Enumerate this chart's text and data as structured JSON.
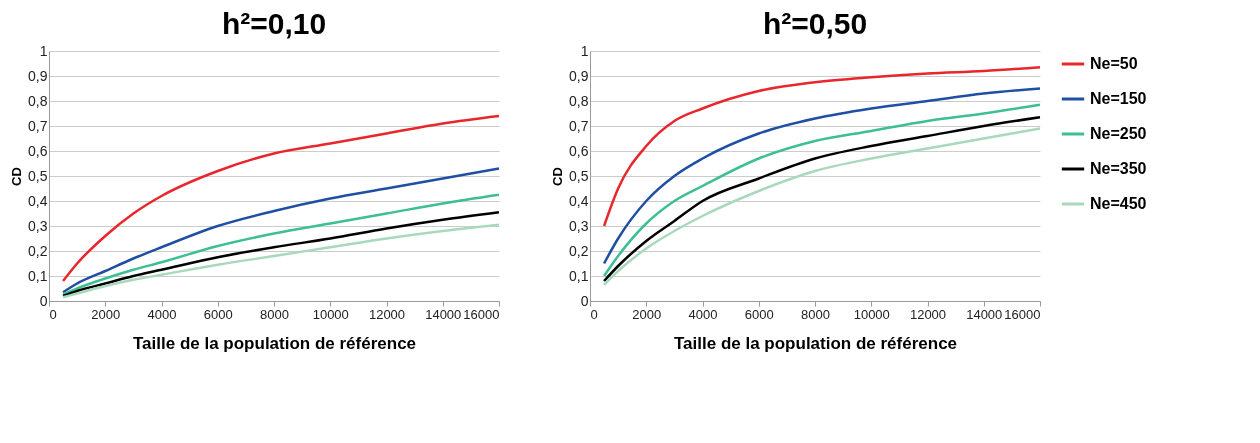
{
  "chart_data": [
    {
      "type": "line",
      "title": "h²=0,10",
      "xlabel": "Taille de la population de référence",
      "ylabel": "CD",
      "x": [
        500,
        1000,
        2000,
        3000,
        4000,
        6000,
        8000,
        10000,
        12000,
        14000,
        16000
      ],
      "series": [
        {
          "color": "#e8262b",
          "values": [
            0.08,
            0.15,
            0.26,
            0.35,
            0.42,
            0.52,
            0.59,
            0.63,
            0.67,
            0.71,
            0.74
          ]
        },
        {
          "color": "#1f4fa3",
          "values": [
            0.035,
            0.07,
            0.12,
            0.17,
            0.215,
            0.3,
            0.36,
            0.41,
            0.45,
            0.49,
            0.53
          ]
        },
        {
          "color": "#3dbf93",
          "values": [
            0.025,
            0.05,
            0.09,
            0.125,
            0.155,
            0.22,
            0.27,
            0.31,
            0.35,
            0.39,
            0.425
          ]
        },
        {
          "color": "#000000",
          "values": [
            0.02,
            0.04,
            0.07,
            0.1,
            0.125,
            0.175,
            0.215,
            0.25,
            0.29,
            0.325,
            0.355
          ]
        },
        {
          "color": "#a8d8bd",
          "values": [
            0.015,
            0.03,
            0.06,
            0.085,
            0.105,
            0.145,
            0.18,
            0.215,
            0.25,
            0.28,
            0.305
          ]
        }
      ],
      "xlim": [
        0,
        16000
      ],
      "xticks": [
        0,
        2000,
        4000,
        6000,
        8000,
        10000,
        12000,
        14000,
        16000
      ],
      "ylim": [
        0,
        1
      ],
      "yticks": [
        0,
        {
          "value": 0.1,
          "label": "0,1"
        },
        {
          "value": 0.2,
          "label": "0,2"
        },
        {
          "value": 0.3,
          "label": "0,3"
        },
        {
          "value": 0.4,
          "label": "0,4"
        },
        {
          "value": 0.5,
          "label": "0,5"
        },
        {
          "value": 0.6,
          "label": "0,6"
        },
        {
          "value": 0.7,
          "label": "0,7"
        },
        {
          "value": 0.8,
          "label": "0,8"
        },
        {
          "value": 0.9,
          "label": "0,9"
        },
        1
      ],
      "grid": "y",
      "marker": "none",
      "line_style": "solid"
    },
    {
      "type": "line",
      "title": "h²=0,50",
      "xlabel": "Taille de la population de référence",
      "ylabel": "CD",
      "x": [
        500,
        1000,
        2000,
        3000,
        4000,
        6000,
        8000,
        10000,
        12000,
        14000,
        16000
      ],
      "series": [
        {
          "name": "Ne=50",
          "color": "#e8262b",
          "values": [
            0.3,
            0.45,
            0.62,
            0.72,
            0.77,
            0.84,
            0.875,
            0.895,
            0.91,
            0.92,
            0.935
          ]
        },
        {
          "name": "Ne=150",
          "color": "#1f4fa3",
          "values": [
            0.15,
            0.25,
            0.4,
            0.5,
            0.57,
            0.67,
            0.73,
            0.77,
            0.8,
            0.83,
            0.85
          ]
        },
        {
          "name": "Ne=250",
          "color": "#3dbf93",
          "values": [
            0.1,
            0.18,
            0.31,
            0.4,
            0.46,
            0.57,
            0.64,
            0.68,
            0.72,
            0.75,
            0.785
          ]
        },
        {
          "name": "Ne=350",
          "color": "#000000",
          "values": [
            0.08,
            0.14,
            0.24,
            0.32,
            0.4,
            0.49,
            0.57,
            0.62,
            0.66,
            0.7,
            0.735
          ]
        },
        {
          "name": "Ne=450",
          "color": "#a8d8bd",
          "values": [
            0.065,
            0.12,
            0.21,
            0.28,
            0.34,
            0.44,
            0.52,
            0.57,
            0.61,
            0.65,
            0.69
          ]
        }
      ],
      "xlim": [
        0,
        16000
      ],
      "xticks": [
        0,
        2000,
        4000,
        6000,
        8000,
        10000,
        12000,
        14000,
        16000
      ],
      "ylim": [
        0,
        1
      ],
      "yticks": [
        0,
        {
          "value": 0.1,
          "label": "0,1"
        },
        {
          "value": 0.2,
          "label": "0,2"
        },
        {
          "value": 0.3,
          "label": "0,3"
        },
        {
          "value": 0.4,
          "label": "0,4"
        },
        {
          "value": 0.5,
          "label": "0,5"
        },
        {
          "value": 0.6,
          "label": "0,6"
        },
        {
          "value": 0.7,
          "label": "0,7"
        },
        {
          "value": 0.8,
          "label": "0,8"
        },
        {
          "value": 0.9,
          "label": "0,9"
        },
        1
      ],
      "grid": "y",
      "legend": "right",
      "marker": "none",
      "line_style": "solid"
    }
  ]
}
